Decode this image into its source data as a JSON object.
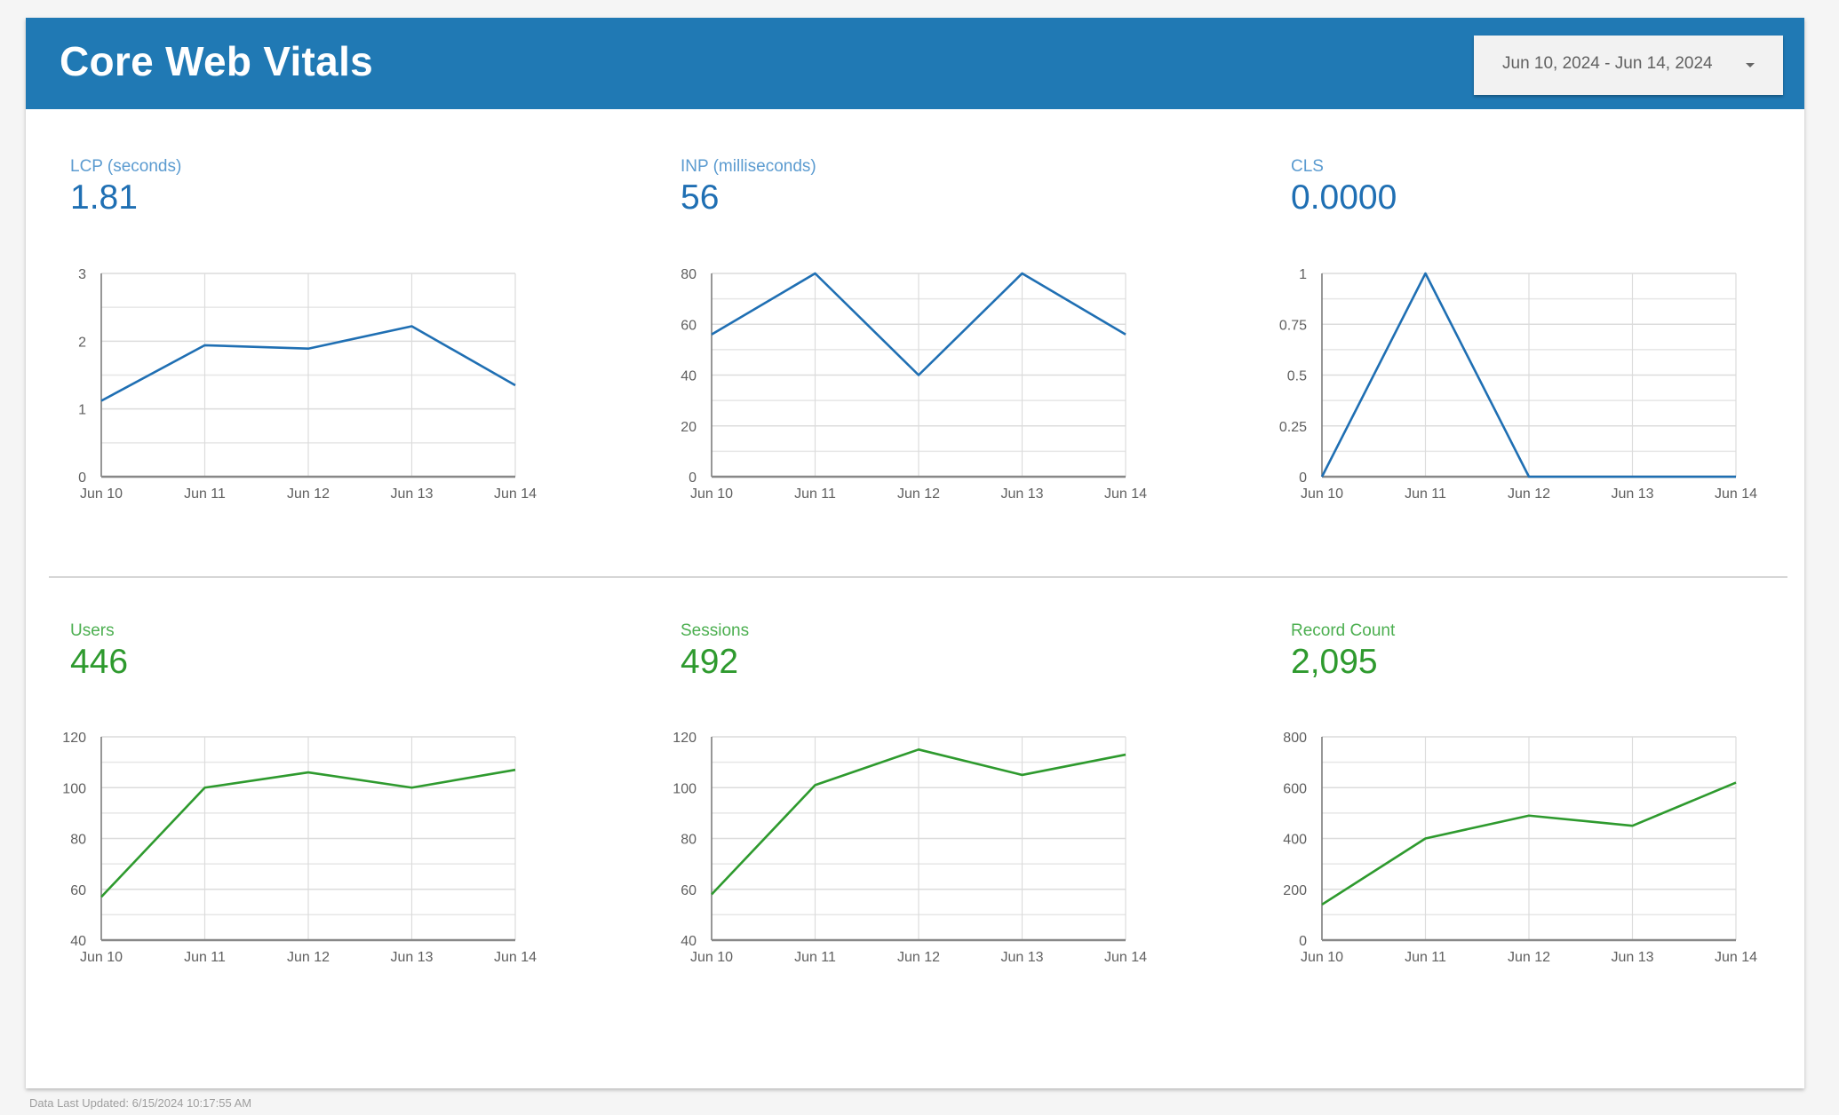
{
  "header": {
    "title": "Core Web Vitals",
    "date_range": "Jun 10, 2024 - Jun 14, 2024",
    "date_icon": "caret-down-icon"
  },
  "colors": {
    "header": "#2079b4",
    "blue_series": "#1f6fb3",
    "green_series": "#2e9a2e"
  },
  "metrics": [
    {
      "label": "LCP (seconds)",
      "value": "1.81"
    },
    {
      "label": "INP (milliseconds)",
      "value": "56"
    },
    {
      "label": "CLS",
      "value": "0.0000"
    },
    {
      "label": "Users",
      "value": "446"
    },
    {
      "label": "Sessions",
      "value": "492"
    },
    {
      "label": "Record Count",
      "value": "2,095"
    }
  ],
  "chart_data": [
    {
      "type": "line",
      "categories": [
        "Jun 10",
        "Jun 11",
        "Jun 12",
        "Jun 13",
        "Jun 14"
      ],
      "values": [
        1.12,
        1.94,
        1.89,
        2.22,
        1.35
      ],
      "ylim": [
        0,
        3
      ],
      "yticks": [
        "0",
        "1",
        "2",
        "3"
      ],
      "grid": true,
      "color": "#1f6fb3"
    },
    {
      "type": "line",
      "categories": [
        "Jun 10",
        "Jun 11",
        "Jun 12",
        "Jun 13",
        "Jun 14"
      ],
      "values": [
        56,
        80,
        40,
        80,
        56
      ],
      "ylim": [
        0,
        80
      ],
      "yticks": [
        "0",
        "20",
        "40",
        "60",
        "80"
      ],
      "grid": true,
      "color": "#1f6fb3"
    },
    {
      "type": "line",
      "categories": [
        "Jun 10",
        "Jun 11",
        "Jun 12",
        "Jun 13",
        "Jun 14"
      ],
      "values": [
        0,
        1,
        0,
        0,
        0
      ],
      "ylim": [
        0,
        1
      ],
      "yticks": [
        "0",
        "0.25",
        "0.5",
        "0.75",
        "1"
      ],
      "grid": true,
      "color": "#1f6fb3"
    },
    {
      "type": "line",
      "categories": [
        "Jun 10",
        "Jun 11",
        "Jun 12",
        "Jun 13",
        "Jun 14"
      ],
      "values": [
        57,
        100,
        106,
        100,
        107
      ],
      "ylim": [
        40,
        120
      ],
      "yticks": [
        "40",
        "60",
        "80",
        "100",
        "120"
      ],
      "grid": true,
      "color": "#2e9a2e"
    },
    {
      "type": "line",
      "categories": [
        "Jun 10",
        "Jun 11",
        "Jun 12",
        "Jun 13",
        "Jun 14"
      ],
      "values": [
        58,
        101,
        115,
        105,
        113
      ],
      "ylim": [
        40,
        120
      ],
      "yticks": [
        "40",
        "60",
        "80",
        "100",
        "120"
      ],
      "grid": true,
      "color": "#2e9a2e"
    },
    {
      "type": "line",
      "categories": [
        "Jun 10",
        "Jun 11",
        "Jun 12",
        "Jun 13",
        "Jun 14"
      ],
      "values": [
        140,
        400,
        490,
        450,
        620
      ],
      "ylim": [
        0,
        800
      ],
      "yticks": [
        "0",
        "200",
        "400",
        "600",
        "800"
      ],
      "grid": true,
      "color": "#2e9a2e"
    }
  ],
  "footer": {
    "text": "Data Last Updated: 6/15/2024 10:17:55 AM"
  }
}
